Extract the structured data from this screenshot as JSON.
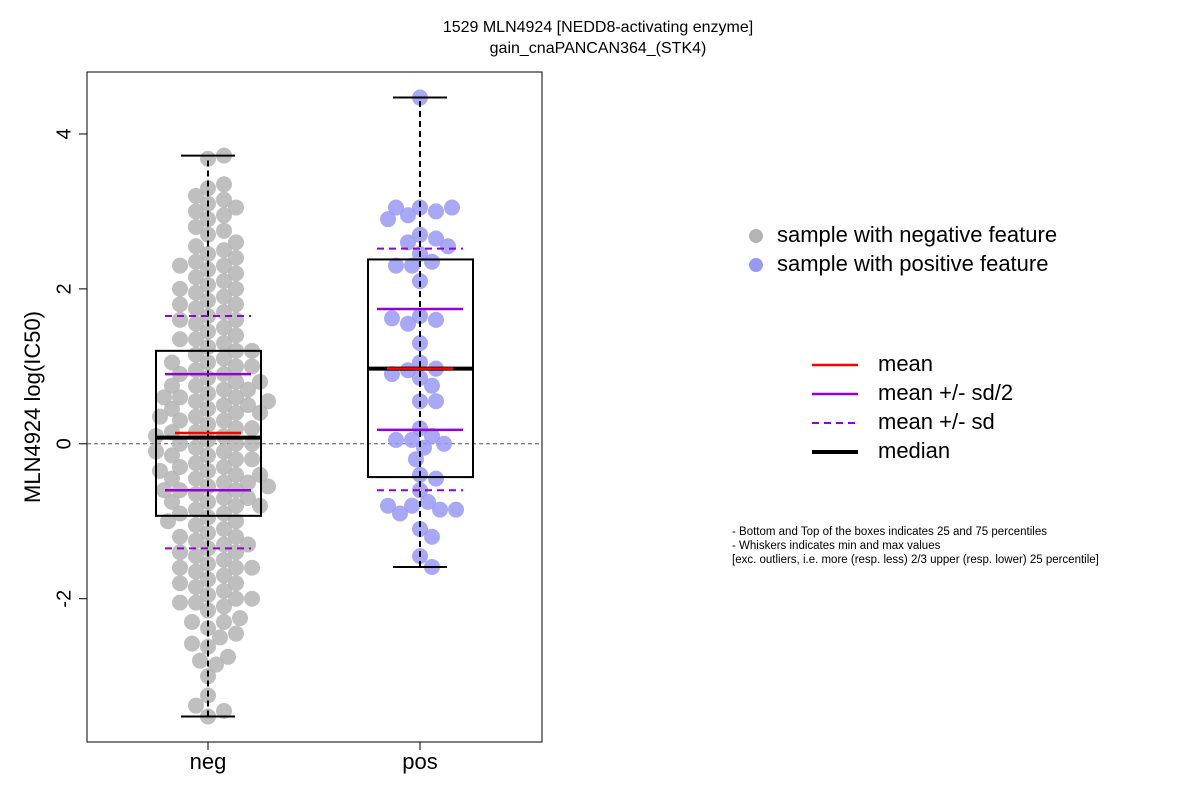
{
  "chart_data": {
    "type": "box",
    "title": [
      "1529 MLN4924 [NEDD8-activating enzyme]",
      "gain_cnaPANCAN364_(STK4)"
    ],
    "ylabel": "MLN4924 log(IC50)",
    "categories": [
      "neg",
      "pos"
    ],
    "ylim": [
      -3.85,
      4.8
    ],
    "yticks": [
      -2,
      0,
      2,
      4
    ],
    "hline": 0,
    "boxes": [
      {
        "min": -3.52,
        "q1": -0.93,
        "median": 0.08,
        "q3": 1.2,
        "max": 3.72,
        "mean": 0.14,
        "mean_minus_half_sd": -0.6,
        "mean_plus_half_sd": 0.9,
        "mean_minus_sd": -1.35,
        "mean_plus_sd": 1.65
      },
      {
        "min": -1.59,
        "q1": -0.43,
        "median": 0.97,
        "q3": 2.38,
        "max": 4.47,
        "mean": 0.97,
        "mean_minus_half_sd": 0.18,
        "mean_plus_half_sd": 1.74,
        "mean_minus_sd": -0.6,
        "mean_plus_sd": 2.52
      }
    ],
    "series": [
      {
        "name": "sample with negative feature",
        "color": "#b4b4b4",
        "values": [
          -3.52,
          -3.45,
          -3.38,
          -3.25,
          -3.0,
          -2.85,
          -2.8,
          -2.75,
          -2.62,
          -2.58,
          -2.5,
          -2.45,
          -2.38,
          -2.3,
          -2.3,
          -2.25,
          -2.15,
          -2.1,
          -2.05,
          -2.05,
          -2.0,
          -1.95,
          -1.9,
          -1.85,
          -1.8,
          -1.8,
          -1.75,
          -1.7,
          -1.65,
          -1.6,
          -1.6,
          -1.55,
          -1.5,
          -1.45,
          -1.4,
          -1.4,
          -1.35,
          -1.3,
          -1.25,
          -1.2,
          -1.15,
          -1.1,
          -1.05,
          -1.0,
          -0.95,
          -0.9,
          -0.85,
          -0.8,
          -0.75,
          -0.7,
          -0.65,
          -0.6,
          -0.55,
          -0.5,
          -0.45,
          -0.4,
          -0.35,
          -0.3,
          -0.25,
          -0.2,
          -0.15,
          -0.1,
          -0.05,
          0.0,
          0.05,
          0.1,
          0.15,
          0.2,
          0.25,
          0.3,
          0.35,
          0.4,
          0.45,
          0.5,
          0.55,
          0.6,
          0.65,
          0.7,
          0.75,
          0.8,
          0.85,
          0.9,
          0.95,
          1.0,
          1.05,
          1.1,
          1.15,
          1.2,
          1.25,
          1.3,
          1.35,
          1.4,
          1.45,
          1.5,
          1.55,
          1.6,
          1.65,
          1.7,
          1.75,
          1.8,
          1.85,
          1.9,
          1.95,
          2.0,
          2.05,
          2.1,
          2.15,
          2.2,
          2.25,
          2.3,
          2.35,
          2.4,
          2.45,
          2.5,
          2.55,
          2.6,
          2.7,
          2.75,
          2.8,
          2.9,
          2.95,
          3.0,
          3.05,
          3.1,
          3.15,
          3.2,
          3.3,
          3.35,
          3.68,
          3.72,
          -0.9,
          -0.6,
          -0.3,
          0.0,
          0.3,
          0.6,
          0.9,
          -0.75,
          -0.45,
          -0.15,
          0.15,
          0.45,
          0.75,
          1.05,
          -1.2,
          1.35,
          -0.5,
          0.5,
          -1.0,
          1.0,
          0.2,
          -0.2,
          0.4,
          -0.4,
          0.1,
          -0.1,
          0.7,
          -0.7,
          1.6,
          -1.6,
          2.0,
          -2.0,
          0.8,
          -0.8,
          1.2,
          0.6,
          -0.6,
          0.0,
          1.8,
          -1.3,
          2.3,
          0.35,
          -0.35,
          0.55,
          -0.55
        ]
      },
      {
        "name": "sample with positive feature",
        "color": "#9999f2",
        "values": [
          4.47,
          3.05,
          3.0,
          2.95,
          3.05,
          3.05,
          2.9,
          2.7,
          2.65,
          2.6,
          2.55,
          2.45,
          2.35,
          2.3,
          2.3,
          2.1,
          1.65,
          1.6,
          1.55,
          1.62,
          1.3,
          1.05,
          0.97,
          0.95,
          0.9,
          0.85,
          0.75,
          0.55,
          0.55,
          0.2,
          0.1,
          0.05,
          0.0,
          0.05,
          -0.05,
          -0.2,
          -0.4,
          -0.45,
          -0.6,
          -0.75,
          -0.8,
          -0.85,
          -0.9,
          -0.85,
          -0.8,
          -1.1,
          -1.2,
          -1.45,
          -1.59
        ]
      }
    ],
    "line_legend": [
      {
        "name": "mean",
        "color": "#ff0000",
        "style": "solid"
      },
      {
        "name": "mean +/- sd/2",
        "color": "#9400d3",
        "style": "solid"
      },
      {
        "name": "mean +/- sd",
        "color": "#9400d3",
        "style": "dashed"
      },
      {
        "name": "median",
        "color": "#000000",
        "style": "thick"
      }
    ],
    "notes": [
      "- Bottom and Top of the boxes indicates 25 and 75 percentiles",
      "- Whiskers indicates min and max values",
      "[exc. outliers, i.e. more (resp. less) 2/3 upper (resp. lower) 25 percentile]"
    ]
  }
}
